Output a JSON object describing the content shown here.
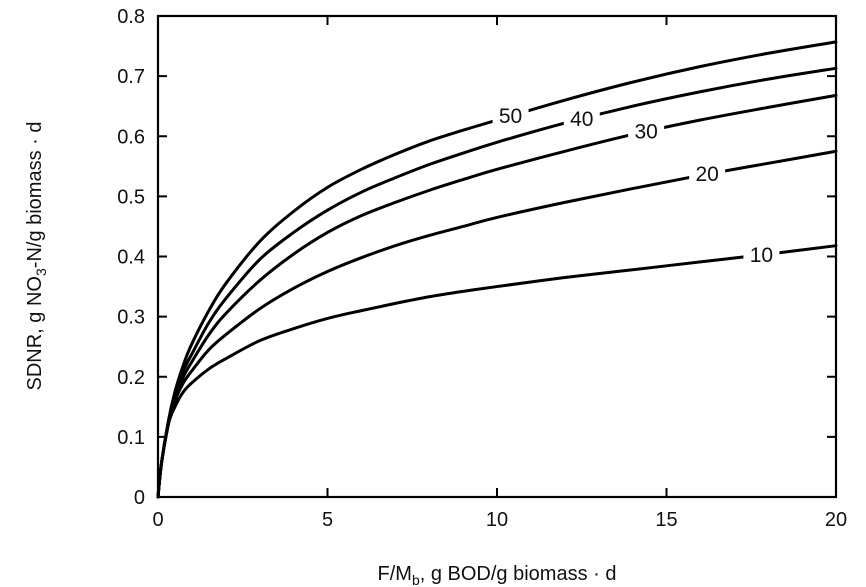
{
  "chart_data": {
    "type": "line",
    "title": "",
    "xlabel": {
      "main": "F/M",
      "sub": "b",
      "rest": ", g BOD/g biomass · d"
    },
    "ylabel": {
      "main": "SDNR, g NO",
      "sub": "3",
      "rest": "-N/g biomass · d"
    },
    "xlim": [
      0,
      20
    ],
    "ylim": [
      0,
      0.8
    ],
    "xticks": [
      0,
      5,
      10,
      15,
      20
    ],
    "xtick_labels": [
      "0",
      "5",
      "10",
      "15",
      "20"
    ],
    "yticks": [
      0,
      0.1,
      0.2,
      0.3,
      0.4,
      0.5,
      0.6,
      0.7,
      0.8
    ],
    "ytick_labels": [
      "0",
      "0.1",
      "0.2",
      "0.3",
      "0.4",
      "0.5",
      "0.6",
      "0.7",
      "0.8"
    ],
    "grid": false,
    "legend": "inline curve labels",
    "series": [
      {
        "name": "10",
        "label_at": 17.8,
        "x": [
          0,
          0.1,
          0.3,
          0.5,
          0.75,
          1,
          1.5,
          2,
          3,
          4,
          5,
          6,
          7,
          8,
          9,
          10,
          12,
          14,
          16,
          18,
          20
        ],
        "y": [
          0,
          0.055,
          0.12,
          0.15,
          0.175,
          0.19,
          0.213,
          0.23,
          0.26,
          0.28,
          0.297,
          0.31,
          0.322,
          0.333,
          0.342,
          0.35,
          0.365,
          0.378,
          0.391,
          0.404,
          0.418
        ]
      },
      {
        "name": "20",
        "label_at": 16.2,
        "x": [
          0,
          0.1,
          0.3,
          0.5,
          0.75,
          1,
          1.5,
          2,
          3,
          4,
          5,
          6,
          7,
          8,
          9,
          10,
          12,
          14,
          16,
          18,
          20
        ],
        "y": [
          0,
          0.055,
          0.12,
          0.16,
          0.19,
          0.21,
          0.245,
          0.27,
          0.313,
          0.347,
          0.375,
          0.398,
          0.418,
          0.435,
          0.45,
          0.465,
          0.49,
          0.513,
          0.535,
          0.555,
          0.575
        ]
      },
      {
        "name": "30",
        "label_at": 14.4,
        "x": [
          0,
          0.1,
          0.3,
          0.5,
          0.75,
          1,
          1.5,
          2,
          3,
          4,
          5,
          6,
          7,
          8,
          9,
          10,
          12,
          14,
          16,
          18,
          20
        ],
        "y": [
          0,
          0.055,
          0.12,
          0.165,
          0.2,
          0.225,
          0.27,
          0.305,
          0.36,
          0.404,
          0.44,
          0.468,
          0.49,
          0.51,
          0.528,
          0.545,
          0.575,
          0.603,
          0.627,
          0.648,
          0.668
        ]
      },
      {
        "name": "40",
        "label_at": 12.5,
        "x": [
          0,
          0.1,
          0.3,
          0.5,
          0.75,
          1,
          1.5,
          2,
          3,
          4,
          5,
          6,
          7,
          8,
          9,
          10,
          12,
          14,
          16,
          18,
          20
        ],
        "y": [
          0,
          0.055,
          0.12,
          0.17,
          0.21,
          0.238,
          0.29,
          0.33,
          0.395,
          0.44,
          0.477,
          0.507,
          0.531,
          0.553,
          0.572,
          0.59,
          0.622,
          0.65,
          0.674,
          0.695,
          0.713
        ]
      },
      {
        "name": "50",
        "label_at": 10.4,
        "x": [
          0,
          0.1,
          0.3,
          0.5,
          0.75,
          1,
          1.5,
          2,
          3,
          4,
          5,
          6,
          7,
          8,
          9,
          10,
          12,
          14,
          16,
          18,
          20
        ],
        "y": [
          0,
          0.055,
          0.125,
          0.175,
          0.22,
          0.255,
          0.31,
          0.355,
          0.425,
          0.475,
          0.515,
          0.545,
          0.57,
          0.592,
          0.61,
          0.627,
          0.66,
          0.69,
          0.716,
          0.738,
          0.757
        ]
      }
    ]
  }
}
